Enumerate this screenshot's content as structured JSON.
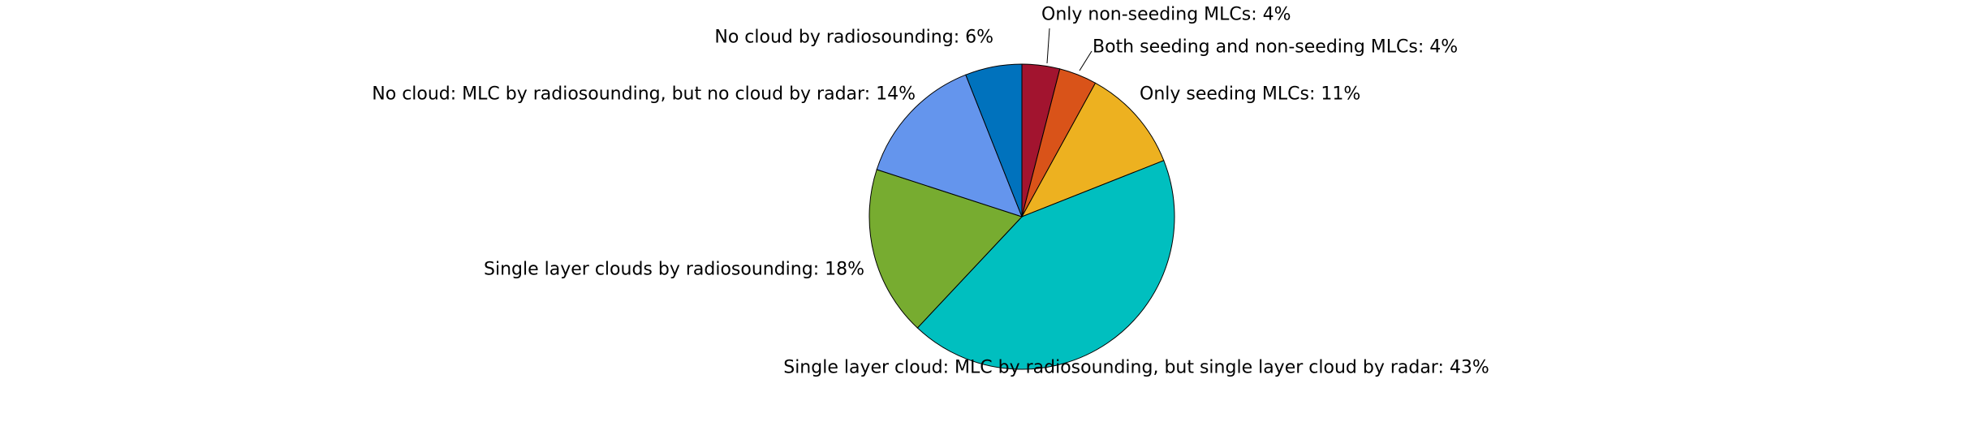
{
  "chart_data": {
    "type": "pie",
    "title": "",
    "slices": [
      {
        "label": "Only non-seeding MLCs: 4%",
        "value": 4,
        "color": "#A2142F"
      },
      {
        "label": "Both seeding and non-seeding MLCs: 4%",
        "value": 4,
        "color": "#D95319"
      },
      {
        "label": "Only seeding MLCs: 11%",
        "value": 11,
        "color": "#EDB120"
      },
      {
        "label": "Single layer cloud: MLC by radiosounding, but single layer cloud by radar: 43%",
        "value": 43,
        "color": "#00BFBF"
      },
      {
        "label": "Single layer clouds by radiosounding: 18%",
        "value": 18,
        "color": "#77AC30"
      },
      {
        "label": "No cloud: MLC by radiosounding, but no cloud by radar: 14%",
        "value": 14,
        "color": "#6495ED"
      },
      {
        "label": "No cloud by radiosounding: 6%",
        "value": 6,
        "color": "#0072BD"
      }
    ],
    "start_angle": "12 o'clock",
    "direction": "clockwise",
    "legend": "none",
    "grid": false
  }
}
